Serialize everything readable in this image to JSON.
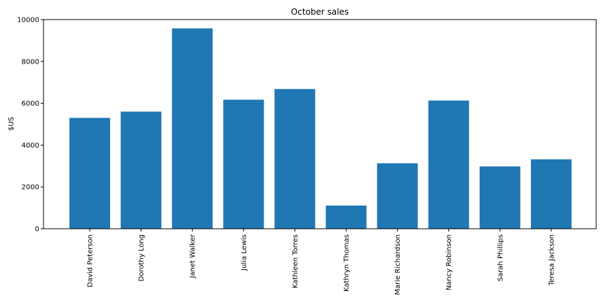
{
  "chart_data": {
    "type": "bar",
    "title": "October sales",
    "xlabel": "",
    "ylabel": "$US",
    "categories": [
      "David Peterson",
      "Dorothy Long",
      "Janet Walker",
      "Julia Lewis",
      "Kathleen Torres",
      "Kathryn Thomas",
      "Marie Richardson",
      "Nancy Robinson",
      "Sarah Phillips",
      "Teresa Jackson"
    ],
    "values": [
      5300,
      5600,
      9580,
      6170,
      6680,
      1110,
      3130,
      6130,
      2980,
      3320
    ],
    "ylim": [
      0,
      10000
    ],
    "yticks": [
      0,
      2000,
      4000,
      6000,
      8000,
      10000
    ],
    "grid": false,
    "legend": "none",
    "bar_color": "#1f77b4"
  }
}
